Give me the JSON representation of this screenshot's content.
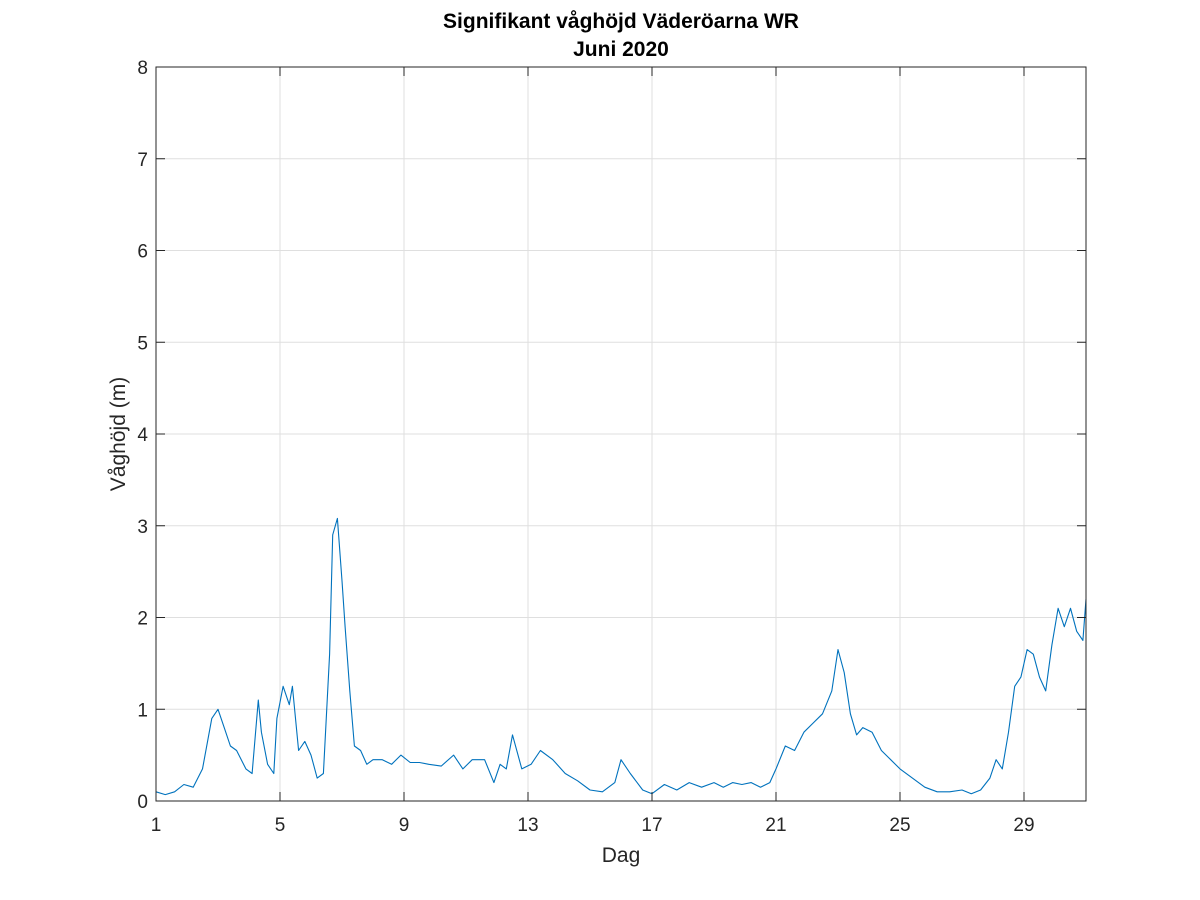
{
  "chart_data": {
    "type": "line",
    "title": "Signifikant våghöjd Väderöarna WR",
    "subtitle": "Juni 2020",
    "xlabel": "Dag",
    "ylabel": "Våghöjd (m)",
    "xlim": [
      1,
      31
    ],
    "ylim": [
      0,
      8
    ],
    "xticks": [
      1,
      5,
      9,
      13,
      17,
      21,
      25,
      29
    ],
    "xtick_labels": [
      "1",
      "5",
      "9",
      "13",
      "17",
      "21",
      "25",
      "29"
    ],
    "yticks": [
      0,
      1,
      2,
      3,
      4,
      5,
      6,
      7,
      8
    ],
    "ytick_labels": [
      "0",
      "1",
      "2",
      "3",
      "4",
      "5",
      "6",
      "7",
      "8"
    ],
    "grid": true,
    "series": [
      {
        "color": "#0072BD",
        "x": [
          1.0,
          1.3,
          1.6,
          1.9,
          2.2,
          2.5,
          2.8,
          3.0,
          3.2,
          3.4,
          3.6,
          3.9,
          4.1,
          4.3,
          4.4,
          4.6,
          4.8,
          4.9,
          5.1,
          5.3,
          5.4,
          5.6,
          5.8,
          6.0,
          6.2,
          6.4,
          6.6,
          6.7,
          6.85,
          7.0,
          7.1,
          7.25,
          7.4,
          7.6,
          7.8,
          8.0,
          8.3,
          8.6,
          8.9,
          9.2,
          9.5,
          9.8,
          10.2,
          10.6,
          10.9,
          11.2,
          11.6,
          11.9,
          12.1,
          12.3,
          12.5,
          12.8,
          13.1,
          13.4,
          13.8,
          14.2,
          14.6,
          15.0,
          15.4,
          15.8,
          16.0,
          16.3,
          16.7,
          17.0,
          17.4,
          17.8,
          18.2,
          18.6,
          19.0,
          19.3,
          19.6,
          19.9,
          20.2,
          20.5,
          20.8,
          21.0,
          21.3,
          21.6,
          21.9,
          22.2,
          22.5,
          22.8,
          23.0,
          23.2,
          23.4,
          23.6,
          23.8,
          24.1,
          24.4,
          24.7,
          25.0,
          25.4,
          25.8,
          26.2,
          26.6,
          27.0,
          27.3,
          27.6,
          27.9,
          28.1,
          28.3,
          28.5,
          28.7,
          28.9,
          29.1,
          29.3,
          29.5,
          29.7,
          29.9,
          30.1,
          30.3,
          30.5,
          30.7,
          30.9,
          31.0
        ],
        "y": [
          0.1,
          0.07,
          0.1,
          0.18,
          0.15,
          0.35,
          0.9,
          1.0,
          0.8,
          0.6,
          0.55,
          0.35,
          0.3,
          1.1,
          0.75,
          0.4,
          0.3,
          0.9,
          1.25,
          1.05,
          1.25,
          0.55,
          0.65,
          0.5,
          0.25,
          0.3,
          1.6,
          2.9,
          3.08,
          2.4,
          1.9,
          1.2,
          0.6,
          0.55,
          0.4,
          0.45,
          0.45,
          0.4,
          0.5,
          0.42,
          0.42,
          0.4,
          0.38,
          0.5,
          0.35,
          0.45,
          0.45,
          0.2,
          0.4,
          0.35,
          0.72,
          0.35,
          0.4,
          0.55,
          0.45,
          0.3,
          0.22,
          0.12,
          0.1,
          0.2,
          0.45,
          0.3,
          0.12,
          0.08,
          0.18,
          0.12,
          0.2,
          0.15,
          0.2,
          0.15,
          0.2,
          0.18,
          0.2,
          0.15,
          0.2,
          0.35,
          0.6,
          0.55,
          0.75,
          0.85,
          0.95,
          1.2,
          1.65,
          1.4,
          0.95,
          0.72,
          0.8,
          0.75,
          0.55,
          0.45,
          0.35,
          0.25,
          0.15,
          0.1,
          0.1,
          0.12,
          0.08,
          0.12,
          0.25,
          0.45,
          0.35,
          0.75,
          1.25,
          1.35,
          1.65,
          1.6,
          1.35,
          1.2,
          1.7,
          2.1,
          1.9,
          2.1,
          1.85,
          1.75,
          2.2
        ]
      }
    ]
  }
}
